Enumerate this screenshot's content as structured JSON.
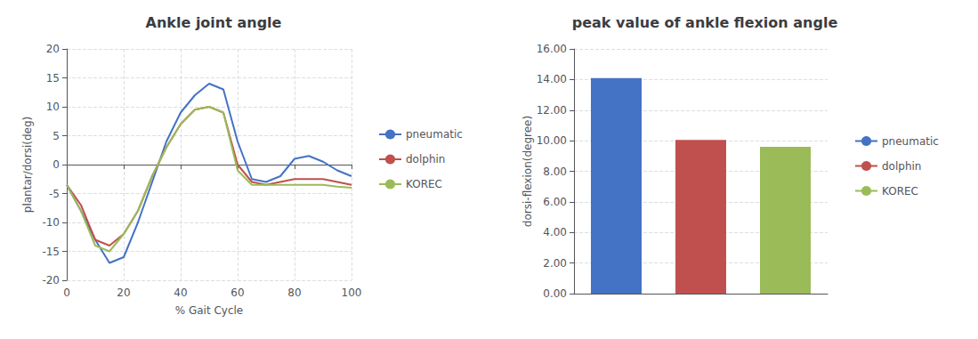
{
  "chart_data": [
    {
      "type": "line",
      "title": "Ankle joint angle",
      "x_label": "% Gait Cycle",
      "y_label": "plantar/dorsi(deg)",
      "x": [
        0,
        5,
        10,
        15,
        20,
        25,
        30,
        35,
        40,
        45,
        50,
        55,
        60,
        65,
        70,
        75,
        80,
        85,
        90,
        95,
        100
      ],
      "series": [
        {
          "name": "pneumatic",
          "color": "#4472C4",
          "values": [
            -3.5,
            -8,
            -13,
            -17,
            -16,
            -10,
            -3,
            4,
            9,
            12,
            14,
            13,
            4,
            -2.5,
            -3,
            -2,
            1,
            1.5,
            0.5,
            -1,
            -2
          ]
        },
        {
          "name": "dolphin",
          "color": "#C0504D",
          "values": [
            -3.5,
            -7,
            -13,
            -14,
            -12,
            -8,
            -2,
            3,
            7,
            9.5,
            10,
            9,
            0,
            -3,
            -3.5,
            -3,
            -2.5,
            -2.5,
            -2.5,
            -3,
            -3.5
          ]
        },
        {
          "name": "KOREC",
          "color": "#9BBB59",
          "values": [
            -3.5,
            -8,
            -14,
            -15,
            -12,
            -8,
            -2,
            3,
            7,
            9.5,
            10,
            9,
            -1,
            -3.5,
            -3.5,
            -3.5,
            -3.5,
            -3.5,
            -3.5,
            -3.8,
            -4
          ]
        }
      ],
      "xlim": [
        0,
        100
      ],
      "ylim": [
        -20,
        20
      ],
      "xticks": [
        0,
        20,
        40,
        60,
        80,
        100
      ],
      "yticks": [
        -20,
        -15,
        -10,
        -5,
        0,
        5,
        10,
        15,
        20
      ],
      "grid": true,
      "legend": "right"
    },
    {
      "type": "bar",
      "title": "peak value of ankle flexion angle",
      "y_label": "dorsi-flexion(degree)",
      "categories": [
        "pneumatic",
        "dolphin",
        "KOREC"
      ],
      "values": [
        14.1,
        10.05,
        9.6
      ],
      "colors": [
        "#4472C4",
        "#C0504D",
        "#9BBB59"
      ],
      "ylim": [
        0,
        16
      ],
      "yticks": [
        {
          "value": 0,
          "label": "0.00"
        },
        {
          "value": 2,
          "label": "2.00"
        },
        {
          "value": 4,
          "label": "4.00"
        },
        {
          "value": 6,
          "label": "6.00"
        },
        {
          "value": 8,
          "label": "8.00"
        },
        {
          "value": 10,
          "label": "10.00"
        },
        {
          "value": 12,
          "label": "12.00"
        },
        {
          "value": 14,
          "label": "14.00"
        },
        {
          "value": 16,
          "label": "16.00"
        }
      ],
      "tick_labels": "y",
      "grid": true,
      "legend": "right"
    }
  ]
}
